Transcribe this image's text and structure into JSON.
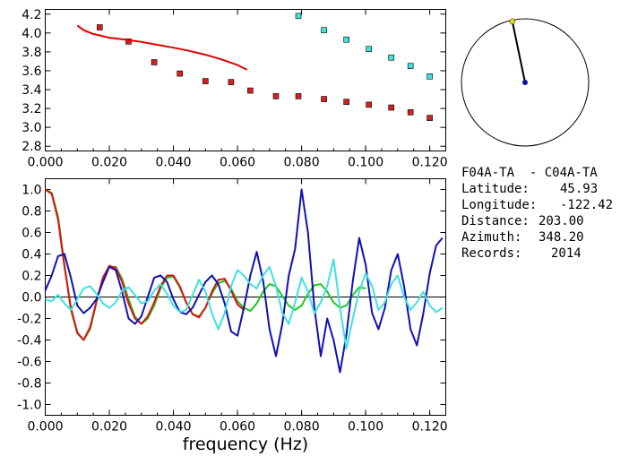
{
  "chart_data": [
    {
      "type": "scatter",
      "panel": "upper",
      "xlim": [
        0.0,
        0.125
      ],
      "ylim": [
        2.75,
        4.25
      ],
      "x_ticks": [
        0.0,
        0.02,
        0.04,
        0.06,
        0.08,
        0.1,
        0.12
      ],
      "x_tick_labels": [
        "0.000",
        "0.020",
        "0.040",
        "0.060",
        "0.080",
        "0.100",
        "0.120"
      ],
      "y_ticks": [
        2.8,
        3.0,
        3.2,
        3.4,
        3.6,
        3.8,
        4.0,
        4.2
      ],
      "y_tick_labels": [
        "2.8",
        "3.0",
        "3.2",
        "3.4",
        "3.6",
        "3.8",
        "4.0",
        "4.2"
      ],
      "series": [
        {
          "kind": "points",
          "color": "#d42020",
          "x": [
            0.017,
            0.026,
            0.034,
            0.042,
            0.05,
            0.058,
            0.064,
            0.072,
            0.079,
            0.087,
            0.094,
            0.101,
            0.108,
            0.114,
            0.12
          ],
          "y": [
            4.06,
            3.91,
            3.69,
            3.57,
            3.49,
            3.48,
            3.39,
            3.33,
            3.33,
            3.3,
            3.27,
            3.24,
            3.21,
            3.16,
            3.1
          ]
        },
        {
          "kind": "points",
          "color": "#40e0d8",
          "x": [
            0.079,
            0.087,
            0.094,
            0.101,
            0.108,
            0.114,
            0.12
          ],
          "y": [
            4.18,
            4.03,
            3.93,
            3.83,
            3.74,
            3.65,
            3.54
          ]
        },
        {
          "kind": "line",
          "color": "#e00000",
          "x": [
            0.01,
            0.012,
            0.015,
            0.02,
            0.025,
            0.03,
            0.035,
            0.04,
            0.045,
            0.05,
            0.055,
            0.06,
            0.063
          ],
          "y": [
            4.08,
            4.03,
            3.99,
            3.95,
            3.93,
            3.905,
            3.875,
            3.845,
            3.81,
            3.77,
            3.72,
            3.66,
            3.61
          ]
        }
      ]
    },
    {
      "type": "line",
      "panel": "lower",
      "xlabel": "frequency (Hz)",
      "xlim": [
        0.0,
        0.125
      ],
      "ylim": [
        -1.1,
        1.1
      ],
      "x_ticks": [
        0.0,
        0.02,
        0.04,
        0.06,
        0.08,
        0.1,
        0.12
      ],
      "x_tick_labels": [
        "0.000",
        "0.020",
        "0.040",
        "0.060",
        "0.080",
        "0.100",
        "0.120"
      ],
      "y_ticks": [
        1.0,
        0.8,
        0.6,
        0.4,
        0.2,
        0.0,
        -0.2,
        -0.4,
        -0.6,
        -0.8,
        -1.0
      ],
      "y_tick_labels": [
        "1.0",
        "0.8",
        "0.6",
        "0.4",
        "0.2",
        "0.0",
        "-0.2",
        "-0.4",
        "-0.6",
        "-0.8",
        "-1.0"
      ],
      "zero_line": true,
      "series": [
        {
          "color": "#20c820",
          "x": [
            0.0,
            0.002,
            0.004,
            0.006,
            0.008,
            0.01,
            0.012,
            0.014,
            0.016,
            0.018,
            0.02,
            0.022,
            0.024,
            0.026,
            0.028,
            0.03,
            0.032,
            0.034,
            0.036,
            0.038,
            0.04,
            0.042,
            0.044,
            0.046,
            0.048,
            0.05,
            0.052,
            0.054,
            0.056,
            0.058,
            0.06,
            0.062,
            0.064,
            0.066,
            0.068,
            0.07,
            0.072,
            0.074,
            0.076,
            0.078,
            0.08,
            0.082,
            0.084,
            0.086,
            0.088,
            0.09,
            0.092,
            0.094,
            0.096,
            0.098,
            0.1
          ],
          "y": [
            1.0,
            0.97,
            0.75,
            0.3,
            -0.12,
            -0.34,
            -0.4,
            -0.3,
            -0.05,
            0.18,
            0.28,
            0.28,
            0.17,
            -0.02,
            -0.18,
            -0.25,
            -0.2,
            -0.08,
            0.08,
            0.18,
            0.19,
            0.09,
            -0.05,
            -0.16,
            -0.18,
            -0.1,
            0.03,
            0.13,
            0.15,
            0.08,
            -0.04,
            -0.1,
            -0.13,
            -0.06,
            0.05,
            0.12,
            0.1,
            0.01,
            -0.08,
            -0.12,
            -0.08,
            0.03,
            0.11,
            0.12,
            0.05,
            -0.05,
            -0.1,
            -0.08,
            0.02,
            0.09,
            0.08
          ]
        },
        {
          "color": "#e01010",
          "x": [
            0.0,
            0.002,
            0.004,
            0.006,
            0.008,
            0.01,
            0.012,
            0.014,
            0.016,
            0.018,
            0.02,
            0.022,
            0.024,
            0.026,
            0.028,
            0.03,
            0.032,
            0.034,
            0.036,
            0.038,
            0.04,
            0.042,
            0.044,
            0.046,
            0.048,
            0.05,
            0.052,
            0.054,
            0.056,
            0.058,
            0.06,
            0.062
          ],
          "y": [
            1.0,
            0.96,
            0.72,
            0.28,
            -0.1,
            -0.33,
            -0.4,
            -0.28,
            -0.04,
            0.18,
            0.29,
            0.27,
            0.14,
            -0.06,
            -0.2,
            -0.25,
            -0.18,
            -0.05,
            0.1,
            0.2,
            0.2,
            0.1,
            -0.05,
            -0.16,
            -0.19,
            -0.1,
            0.05,
            0.16,
            0.17,
            0.06,
            -0.07,
            -0.12
          ]
        },
        {
          "color": "#1010b4",
          "x": [
            0.0,
            0.002,
            0.004,
            0.006,
            0.008,
            0.01,
            0.012,
            0.014,
            0.016,
            0.018,
            0.02,
            0.022,
            0.024,
            0.026,
            0.028,
            0.03,
            0.032,
            0.034,
            0.036,
            0.038,
            0.04,
            0.042,
            0.044,
            0.046,
            0.048,
            0.05,
            0.052,
            0.054,
            0.056,
            0.058,
            0.06,
            0.062,
            0.064,
            0.066,
            0.068,
            0.07,
            0.072,
            0.074,
            0.076,
            0.078,
            0.08,
            0.082,
            0.084,
            0.086,
            0.088,
            0.09,
            0.092,
            0.094,
            0.096,
            0.098,
            0.1,
            0.102,
            0.104,
            0.106,
            0.108,
            0.11,
            0.112,
            0.114,
            0.116,
            0.118,
            0.12,
            0.122,
            0.124
          ],
          "y": [
            0.06,
            0.2,
            0.38,
            0.4,
            0.18,
            -0.08,
            -0.15,
            -0.1,
            -0.02,
            0.14,
            0.28,
            0.25,
            0.05,
            -0.2,
            -0.25,
            -0.18,
            0.0,
            0.18,
            0.2,
            0.14,
            -0.02,
            -0.14,
            -0.16,
            -0.1,
            0.02,
            0.14,
            0.2,
            0.12,
            -0.06,
            -0.32,
            -0.36,
            -0.1,
            0.2,
            0.42,
            0.15,
            -0.3,
            -0.55,
            -0.25,
            0.2,
            0.45,
            1.0,
            0.6,
            -0.1,
            -0.55,
            -0.2,
            -0.4,
            -0.7,
            -0.35,
            0.15,
            0.55,
            0.3,
            -0.15,
            -0.3,
            -0.1,
            0.25,
            0.4,
            0.1,
            -0.3,
            -0.45,
            -0.15,
            0.22,
            0.48,
            0.55
          ]
        },
        {
          "color": "#40e0e0",
          "x": [
            0.0,
            0.002,
            0.004,
            0.006,
            0.008,
            0.01,
            0.012,
            0.014,
            0.016,
            0.018,
            0.02,
            0.022,
            0.024,
            0.026,
            0.028,
            0.03,
            0.032,
            0.034,
            0.036,
            0.038,
            0.04,
            0.042,
            0.044,
            0.046,
            0.048,
            0.05,
            0.052,
            0.054,
            0.056,
            0.058,
            0.06,
            0.062,
            0.064,
            0.066,
            0.068,
            0.07,
            0.072,
            0.074,
            0.076,
            0.078,
            0.08,
            0.082,
            0.084,
            0.086,
            0.088,
            0.09,
            0.092,
            0.094,
            0.096,
            0.098,
            0.1,
            0.102,
            0.104,
            0.106,
            0.108,
            0.11,
            0.112,
            0.114,
            0.116,
            0.118,
            0.12,
            0.122,
            0.124
          ],
          "y": [
            -0.02,
            -0.04,
            0.02,
            -0.06,
            -0.12,
            -0.02,
            0.08,
            0.1,
            0.03,
            -0.06,
            -0.1,
            -0.05,
            0.06,
            0.09,
            0.02,
            -0.06,
            -0.04,
            0.06,
            0.12,
            0.03,
            -0.08,
            -0.14,
            -0.12,
            0.02,
            0.16,
            0.05,
            -0.15,
            -0.3,
            -0.15,
            0.1,
            0.25,
            0.2,
            0.12,
            0.08,
            0.2,
            0.28,
            0.1,
            -0.15,
            -0.25,
            -0.05,
            0.18,
            0.05,
            -0.15,
            -0.05,
            0.1,
            0.35,
            -0.1,
            -0.48,
            -0.2,
            0.05,
            0.22,
            0.1,
            -0.12,
            -0.05,
            0.12,
            0.2,
            0.0,
            -0.12,
            -0.05,
            0.05,
            -0.08,
            -0.14,
            -0.1
          ]
        }
      ]
    }
  ],
  "map_inset": {
    "circle_color": "#000000",
    "line_color": "#000000",
    "origin_marker_color": "#1010a0",
    "end_marker_color": "#e8e000",
    "azimuth_deg": 348.2,
    "fraction_of_radius": 0.98
  },
  "station_info": {
    "title": "F04A-TA  - C04A-TA",
    "rows": [
      {
        "label": "Latitude:",
        "value": "45.93"
      },
      {
        "label": "Longitude:",
        "value": "-122.42"
      },
      {
        "label": "Distance:",
        "value": "203.00"
      },
      {
        "label": "Azimuth:",
        "value": "348.20"
      },
      {
        "label": "Records:",
        "value": "2014"
      }
    ]
  }
}
